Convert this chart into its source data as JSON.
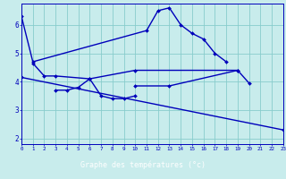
{
  "xlabel": "Graphe des températures (°c)",
  "bg_color": "#c8ecec",
  "line_color": "#0000bb",
  "grid_color": "#88cccc",
  "banner_color": "#0000aa",
  "banner_text_color": "#ffffff",
  "xlim": [
    0,
    23
  ],
  "ylim": [
    1.8,
    6.75
  ],
  "yticks": [
    2,
    3,
    4,
    5,
    6
  ],
  "xtick_vals": [
    0,
    1,
    2,
    3,
    4,
    5,
    6,
    7,
    8,
    9,
    10,
    11,
    12,
    13,
    14,
    15,
    16,
    17,
    18,
    19,
    20,
    21,
    22,
    23
  ],
  "lines": [
    {
      "x": [
        0,
        1,
        11,
        12,
        13,
        14,
        15,
        16,
        17,
        18
      ],
      "y": [
        6.3,
        4.7,
        5.8,
        6.5,
        6.6,
        6.0,
        5.7,
        5.5,
        5.0,
        4.7
      ]
    },
    {
      "x": [
        1,
        2,
        3,
        6,
        10,
        19
      ],
      "y": [
        4.65,
        4.2,
        4.2,
        4.1,
        4.4,
        4.4
      ]
    },
    {
      "x": [
        3,
        4,
        5,
        6,
        7,
        8,
        9,
        10
      ],
      "y": [
        3.7,
        3.7,
        3.8,
        4.1,
        3.5,
        3.4,
        3.4,
        3.5
      ]
    },
    {
      "x": [
        10,
        13,
        19,
        20
      ],
      "y": [
        3.85,
        3.85,
        4.4,
        3.95
      ]
    },
    {
      "x": [
        0,
        23
      ],
      "y": [
        4.15,
        2.3
      ]
    }
  ]
}
